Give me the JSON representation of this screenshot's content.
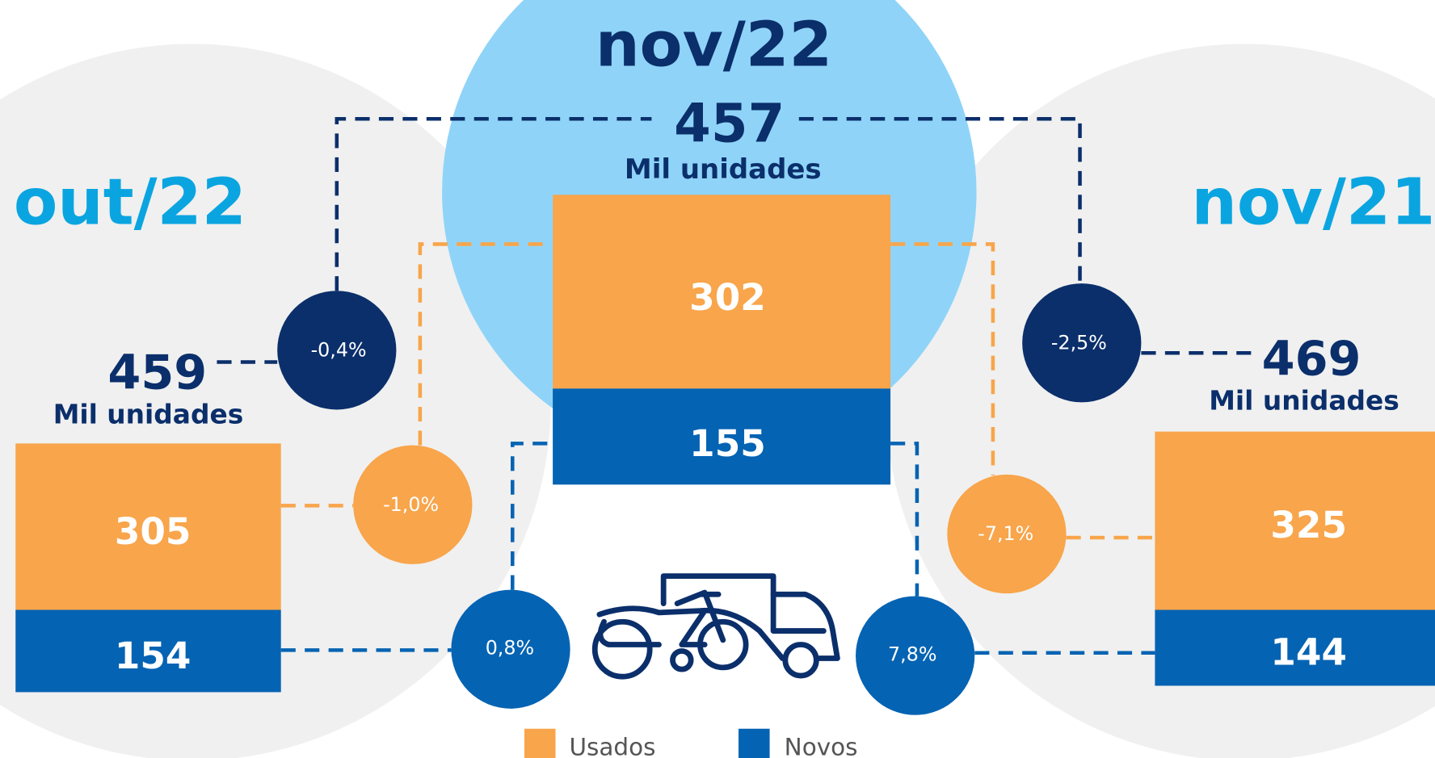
{
  "periods": [
    {
      "label": "out/22",
      "total": 459,
      "unit": "Mil unidades",
      "usados": 305,
      "novos": 154
    },
    {
      "label": "nov/22",
      "total": 457,
      "unit": "Mil unidades",
      "usados": 302,
      "novos": 155
    },
    {
      "label": "nov/21",
      "total": 469,
      "unit": "Mil unidades",
      "usados": 325,
      "novos": 144
    }
  ],
  "changes": {
    "total": [
      "-0,4%",
      "-2,5%"
    ],
    "usados": [
      "-1,0%",
      "-7,1%"
    ],
    "novos": [
      "0,8%",
      "7,8%"
    ]
  },
  "legend": [
    "Usados",
    "Novos"
  ]
}
